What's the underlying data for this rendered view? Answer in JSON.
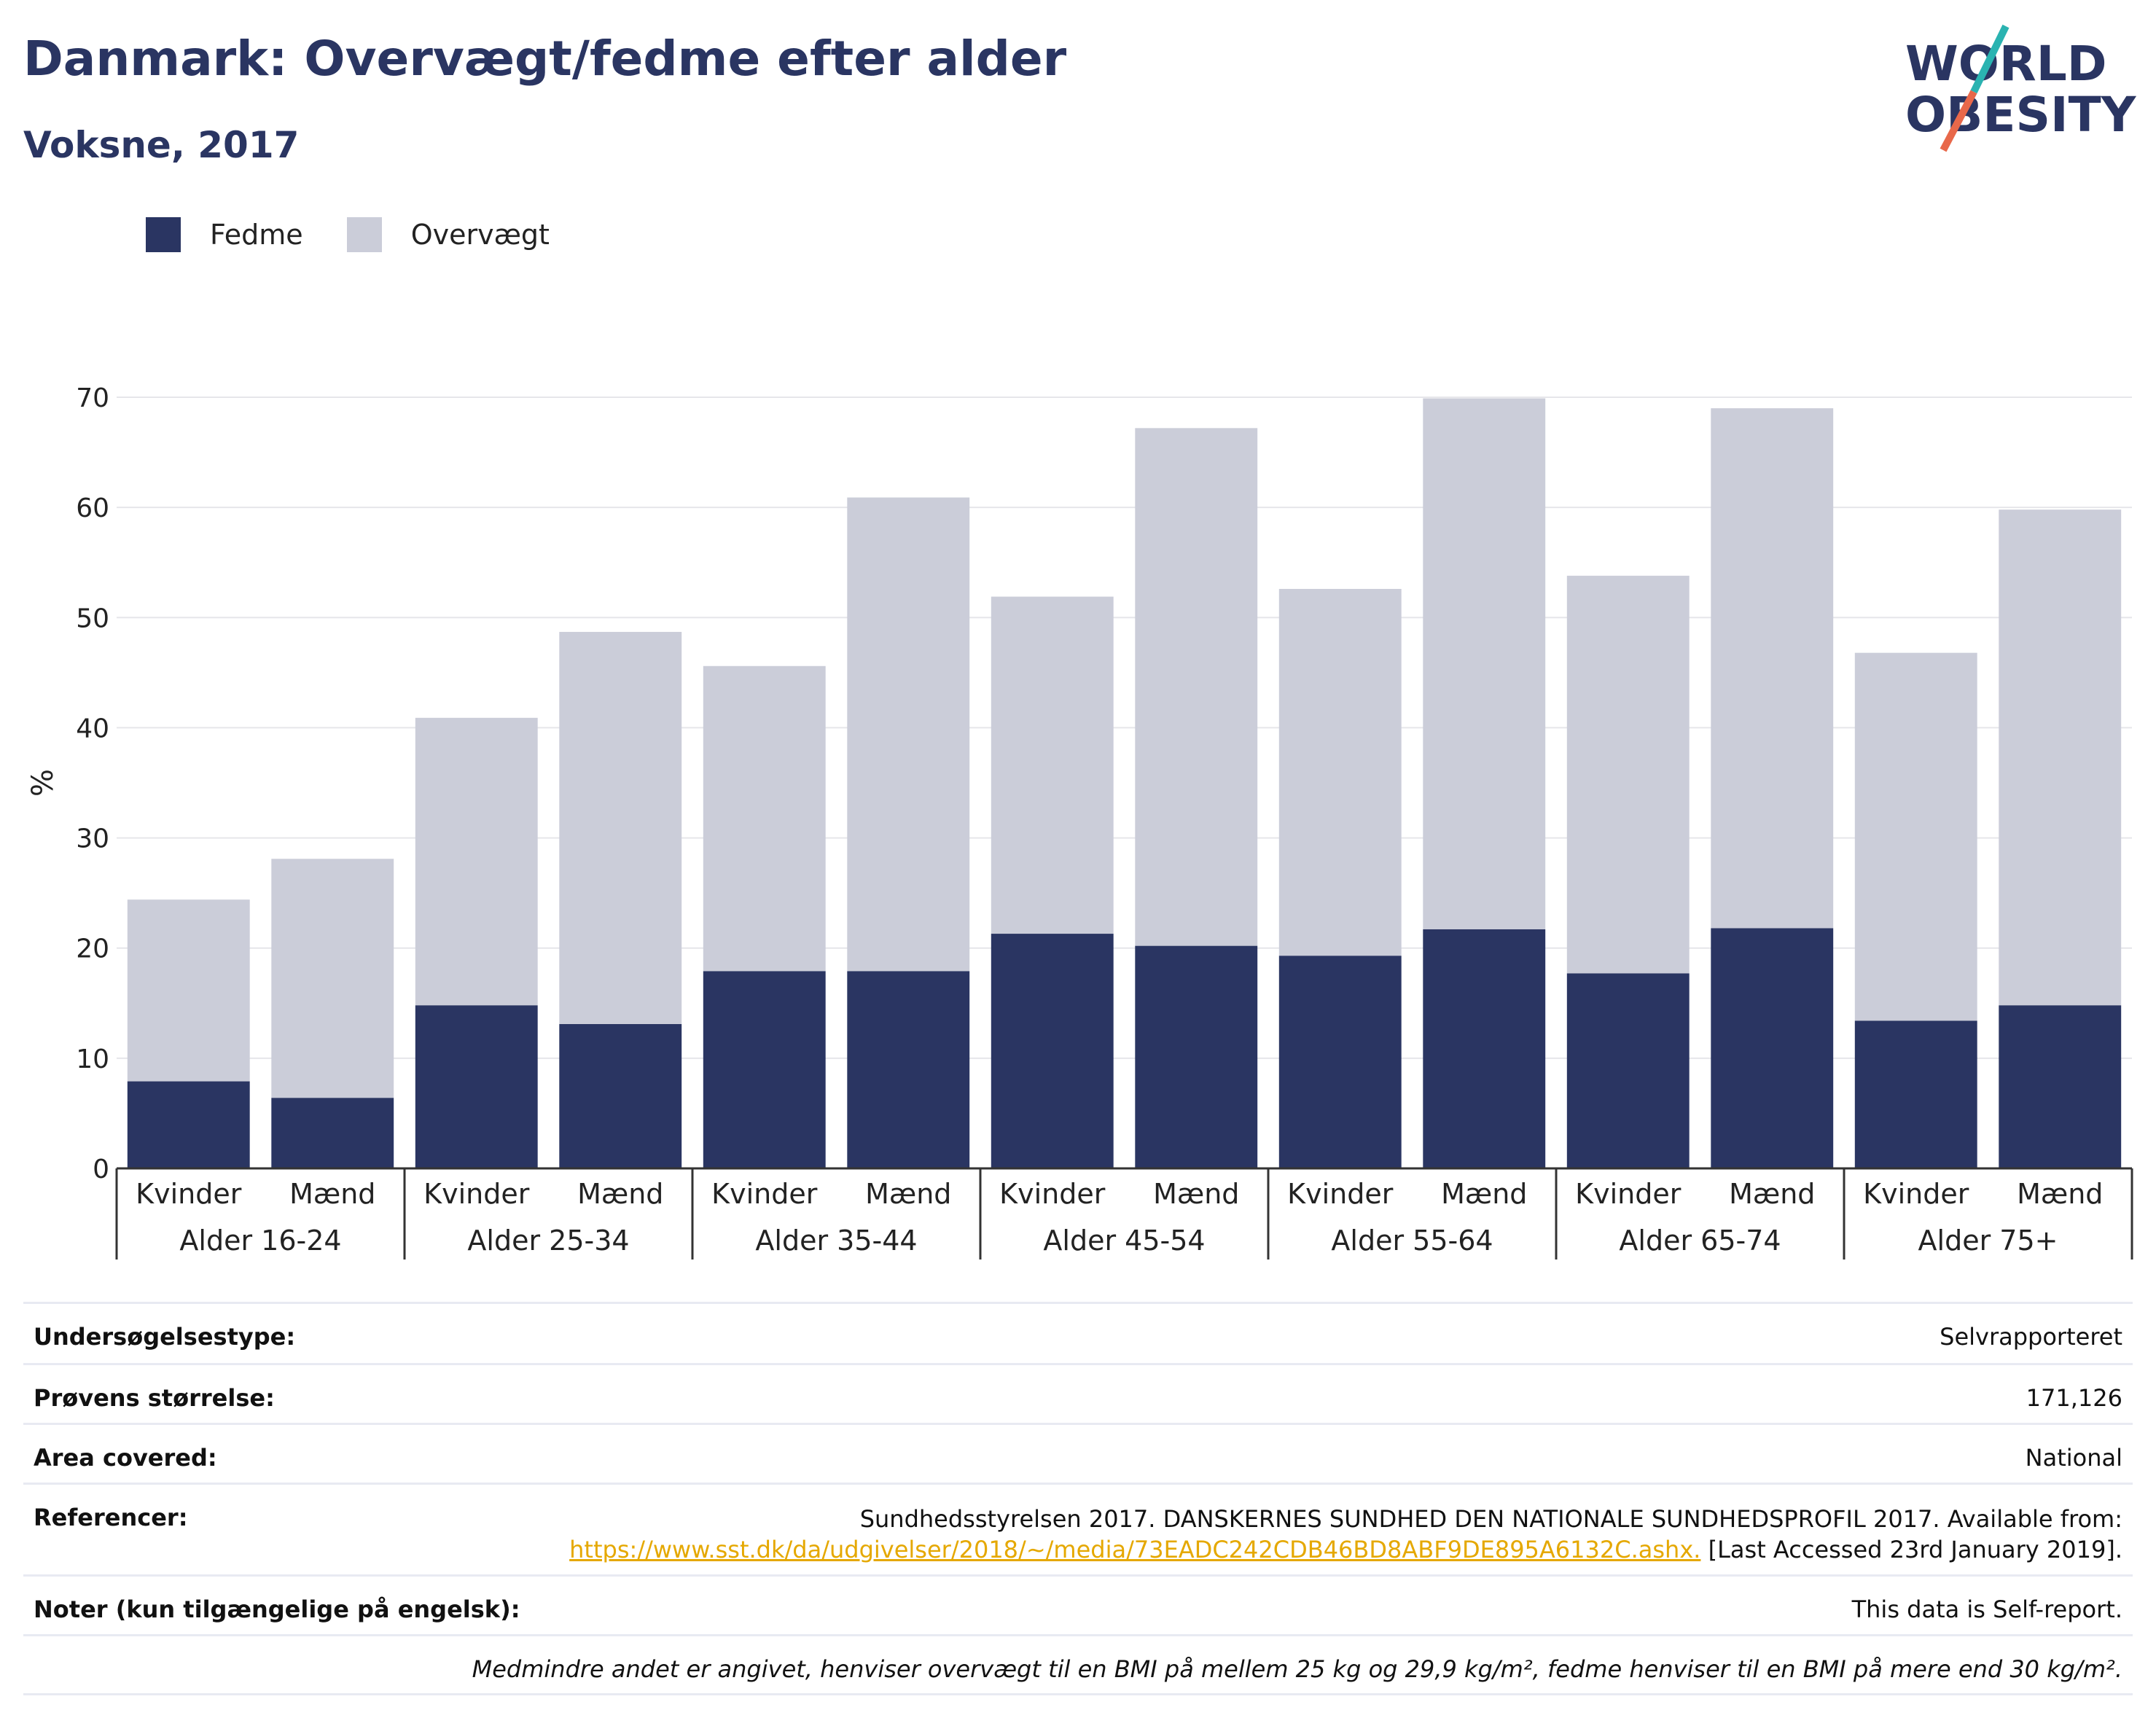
{
  "header": {
    "title": "Danmark: Overvægt/fedme efter alder",
    "subtitle": "Voksne, 2017"
  },
  "logo": {
    "line1": "WORLD",
    "line2": "OBESITY",
    "colors": {
      "text": "#2a3562",
      "slash_top": "#2ab3b1",
      "slash_bottom": "#e8684a"
    }
  },
  "colors": {
    "fedme": "#2a3562",
    "overvaegt": "#cbcdd9",
    "axis": "#333333",
    "grid": "#e6e6ea"
  },
  "chart_data": {
    "type": "bar",
    "stacked": true,
    "ylabel": "%",
    "ylim": [
      0,
      70
    ],
    "yticks": [
      0,
      10,
      20,
      30,
      40,
      50,
      60,
      70
    ],
    "grid": true,
    "legend_position": "top-left",
    "groups": [
      "Alder 16-24",
      "Alder 25-34",
      "Alder 35-44",
      "Alder 45-54",
      "Alder 55-64",
      "Alder 65-74",
      "Alder 75+"
    ],
    "subcategories": [
      "Kvinder",
      "Mænd"
    ],
    "series": [
      {
        "name": "Fedme",
        "values": [
          7.9,
          6.4,
          14.8,
          13.1,
          17.9,
          17.9,
          21.3,
          20.2,
          19.3,
          21.7,
          17.7,
          21.8,
          13.4,
          14.8
        ]
      },
      {
        "name": "Overvægt",
        "values": [
          16.5,
          21.7,
          26.1,
          35.6,
          27.7,
          43.0,
          30.6,
          47.0,
          33.3,
          48.2,
          36.1,
          47.2,
          33.4,
          45.0
        ]
      }
    ]
  },
  "info": {
    "rows": [
      {
        "label": "Undersøgelsestype:",
        "value": "Selvrapporteret"
      },
      {
        "label": "Prøvens størrelse:",
        "value": "171,126"
      },
      {
        "label": "Area covered:",
        "value": "National"
      }
    ],
    "reference": {
      "label": "Referencer:",
      "text1": "Sundhedsstyrelsen 2017. DANSKERNES SUNDHED DEN NATIONALE SUNDHEDSPROFIL 2017. Available from:",
      "link": "https://www.sst.dk/da/udgivelser/2018/~/media/73EADC242CDB46BD8ABF9DE895A6132C.ashx.",
      "text2": "[Last Accessed 23rd January 2019]."
    },
    "notes": {
      "label": "Noter (kun tilgængelige på engelsk):",
      "value": "This data is Self-report."
    },
    "footnote": "Medmindre andet er angivet, henviser overvægt til en BMI på mellem 25 kg og 29,9 kg/m², fedme henviser til en BMI på mere end 30 kg/m²."
  }
}
